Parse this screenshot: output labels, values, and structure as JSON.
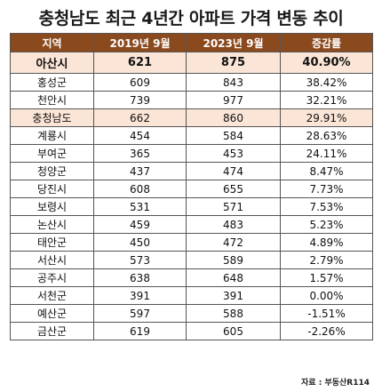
{
  "title": "충청남도 최근 4년간 아파트 가격 변동 추이",
  "columns": [
    "지역",
    "2019년 9월",
    "2023년 9월",
    "증감률"
  ],
  "rows": [
    {
      "region": "아산시",
      "y2019": "621",
      "y2023": "875",
      "rate": "40.90%",
      "highlight": true,
      "main": true
    },
    {
      "region": "홍성군",
      "y2019": "609",
      "y2023": "843",
      "rate": "38.42%"
    },
    {
      "region": "천안시",
      "y2019": "739",
      "y2023": "977",
      "rate": "32.21%"
    },
    {
      "region": "충청남도",
      "y2019": "662",
      "y2023": "860",
      "rate": "29.91%",
      "highlight": true
    },
    {
      "region": "계룡시",
      "y2019": "454",
      "y2023": "584",
      "rate": "28.63%"
    },
    {
      "region": "부여군",
      "y2019": "365",
      "y2023": "453",
      "rate": "24.11%"
    },
    {
      "region": "청양군",
      "y2019": "437",
      "y2023": "474",
      "rate": "8.47%"
    },
    {
      "region": "당진시",
      "y2019": "608",
      "y2023": "655",
      "rate": "7.73%"
    },
    {
      "region": "보령시",
      "y2019": "531",
      "y2023": "571",
      "rate": "7.53%"
    },
    {
      "region": "논산시",
      "y2019": "459",
      "y2023": "483",
      "rate": "5.23%"
    },
    {
      "region": "태안군",
      "y2019": "450",
      "y2023": "472",
      "rate": "4.89%"
    },
    {
      "region": "서산시",
      "y2019": "573",
      "y2023": "589",
      "rate": "2.79%"
    },
    {
      "region": "공주시",
      "y2019": "638",
      "y2023": "648",
      "rate": "1.57%"
    },
    {
      "region": "서천군",
      "y2019": "391",
      "y2023": "391",
      "rate": "0.00%"
    },
    {
      "region": "예산군",
      "y2019": "597",
      "y2023": "588",
      "rate": "-1.51%"
    },
    {
      "region": "금산군",
      "y2019": "619",
      "y2023": "605",
      "rate": "-2.26%"
    }
  ],
  "source": "자료 : 부동산R114",
  "colors": {
    "header": "#8b4a1e",
    "highlight": "#fbe5d6"
  }
}
